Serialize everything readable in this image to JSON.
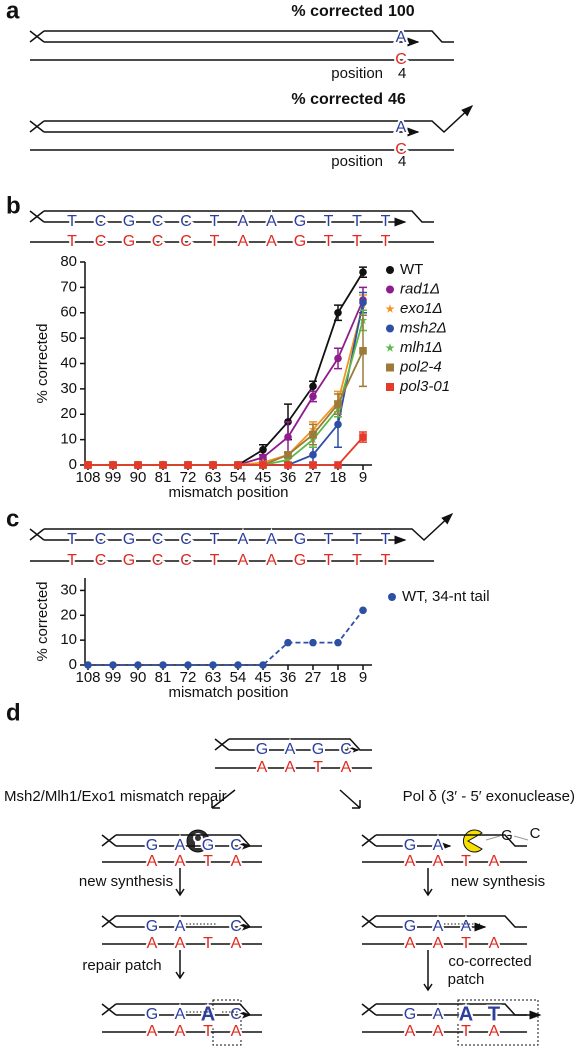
{
  "panel_labels": [
    "a",
    "b",
    "c",
    "d"
  ],
  "panel_a": {
    "diagrams": [
      {
        "heading": "% corrected",
        "percent": 100,
        "top_base": "A",
        "bottom_base": "C",
        "position_label": "position",
        "position": 4
      },
      {
        "heading": "% corrected",
        "percent": 46,
        "top_base": "A",
        "bottom_base": "C",
        "position_label": "position",
        "position": 4
      }
    ]
  },
  "panel_b": {
    "top_strand": [
      "T",
      "C",
      "G",
      "C",
      "C",
      "T",
      "A",
      "A",
      "G",
      "T",
      "T",
      "T"
    ],
    "bottom_strand": [
      "T",
      "C",
      "G",
      "C",
      "C",
      "T",
      "A",
      "A",
      "G",
      "T",
      "T",
      "T"
    ]
  },
  "panel_c": {
    "top_strand": [
      "T",
      "C",
      "G",
      "C",
      "C",
      "T",
      "A",
      "A",
      "G",
      "T",
      "T",
      "T"
    ],
    "bottom_strand": [
      "T",
      "C",
      "G",
      "C",
      "C",
      "T",
      "A",
      "A",
      "G",
      "T",
      "T",
      "T"
    ]
  },
  "chart_data": [
    {
      "type": "line",
      "xlabel": "mismatch position",
      "ylabel": "% corrected",
      "categories": [
        "108",
        "99",
        "90",
        "81",
        "72",
        "63",
        "54",
        "45",
        "36",
        "27",
        "18",
        "9"
      ],
      "ylim": [
        0,
        80
      ],
      "yticks": [
        0,
        10,
        20,
        30,
        40,
        50,
        60,
        70,
        80
      ],
      "series": [
        {
          "name": "WT",
          "color": "#111111",
          "marker": "circle",
          "italic": false,
          "values": [
            0,
            0,
            0,
            0,
            0,
            0,
            0,
            6,
            17,
            31,
            60,
            76
          ],
          "errors": [
            0,
            0,
            0,
            0,
            0,
            0,
            0,
            2,
            7,
            2,
            3,
            2
          ]
        },
        {
          "name": "rad1Δ",
          "color": "#8e1c8e",
          "marker": "circle",
          "italic": true,
          "values": [
            0,
            0,
            0,
            0,
            0,
            0,
            0,
            3,
            11,
            27,
            42,
            65
          ],
          "errors": [
            0,
            0,
            0,
            0,
            0,
            0,
            0,
            1,
            6,
            2,
            4,
            5
          ]
        },
        {
          "name": "exo1Δ",
          "color": "#f39422",
          "marker": "star",
          "italic": true,
          "values": [
            0,
            0,
            0,
            0,
            0,
            0,
            0,
            1,
            4,
            14,
            25,
            63
          ],
          "errors": [
            0,
            0,
            0,
            0,
            0,
            0,
            0,
            0,
            1,
            3,
            4,
            4
          ]
        },
        {
          "name": "msh2Δ",
          "color": "#2d50a5",
          "marker": "circle",
          "italic": true,
          "values": [
            0,
            0,
            0,
            0,
            0,
            0,
            0,
            0,
            0,
            4,
            16,
            64
          ],
          "errors": [
            0,
            0,
            0,
            0,
            0,
            0,
            0,
            0,
            0,
            3,
            9,
            4
          ]
        },
        {
          "name": "mlh1Δ",
          "color": "#5bb947",
          "marker": "star",
          "italic": true,
          "values": [
            0,
            0,
            0,
            0,
            0,
            0,
            0,
            0,
            2,
            10,
            22,
            57
          ],
          "errors": [
            0,
            0,
            0,
            0,
            0,
            0,
            0,
            0,
            1,
            3,
            3,
            4
          ]
        },
        {
          "name": "pol2-4",
          "color": "#9b7a3a",
          "marker": "square",
          "italic": true,
          "values": [
            0,
            0,
            0,
            0,
            0,
            0,
            0,
            0,
            4,
            12,
            24,
            45
          ],
          "errors": [
            0,
            0,
            0,
            0,
            0,
            0,
            0,
            0,
            1,
            4,
            4,
            14
          ]
        },
        {
          "name": "pol3-01",
          "color": "#e5392a",
          "marker": "square",
          "italic": true,
          "values": [
            0,
            0,
            0,
            0,
            0,
            0,
            0,
            0,
            0,
            0,
            0,
            11
          ],
          "errors": [
            0,
            0,
            0,
            0,
            0,
            0,
            0,
            0,
            0,
            0,
            0,
            2
          ]
        }
      ]
    },
    {
      "type": "line",
      "xlabel": "mismatch position",
      "ylabel": "% corrected",
      "categories": [
        "108",
        "99",
        "90",
        "81",
        "72",
        "63",
        "54",
        "45",
        "36",
        "27",
        "18",
        "9"
      ],
      "ylim": [
        0,
        35
      ],
      "yticks": [
        0,
        10,
        20,
        30
      ],
      "series": [
        {
          "name": "WT, 34-nt tail",
          "color": "#2d50a5",
          "marker": "circle",
          "italic": false,
          "dash": true,
          "values": [
            0,
            0,
            0,
            0,
            0,
            0,
            0,
            0,
            9,
            9,
            9,
            22
          ]
        }
      ]
    }
  ],
  "panel_d": {
    "top": {
      "top_bases": [
        "G",
        "A",
        "G",
        "C"
      ],
      "bottom_bases": [
        "A",
        "A",
        "T",
        "A"
      ]
    },
    "left_title": "Msh2/Mlh1/Exo1 mismatch repair",
    "right_title": "Pol δ (3′ - 5′ exonuclease)",
    "left": {
      "labels": [
        "new synthesis",
        "repair patch"
      ],
      "steps": [
        {
          "top_bases": [
            "G",
            "A",
            "G",
            "C"
          ],
          "bottom_bases": [
            "A",
            "A",
            "T",
            "A"
          ]
        },
        {
          "top_bases": [
            "G",
            "A",
            null,
            "C"
          ],
          "bottom_bases": [
            "A",
            "A",
            "T",
            "A"
          ]
        },
        {
          "top_bases": [
            "G",
            "A",
            "A",
            "C"
          ],
          "bottom_bases": [
            "A",
            "A",
            "T",
            "A"
          ]
        }
      ]
    },
    "right": {
      "labels": [
        "new synthesis",
        "co-corrected",
        "patch"
      ],
      "excised": [
        "G",
        "C"
      ],
      "steps": [
        {
          "top_bases": [
            "G",
            "A",
            null,
            null
          ],
          "bottom_bases": [
            "A",
            "A",
            "T",
            "A"
          ]
        },
        {
          "top_bases": [
            "G",
            "A",
            "A",
            null
          ],
          "bottom_bases": [
            "A",
            "A",
            "T",
            "A"
          ]
        },
        {
          "top_bases": [
            "G",
            "A",
            "A",
            "T"
          ],
          "bottom_bases": [
            "A",
            "A",
            "T",
            "A"
          ]
        }
      ]
    }
  }
}
